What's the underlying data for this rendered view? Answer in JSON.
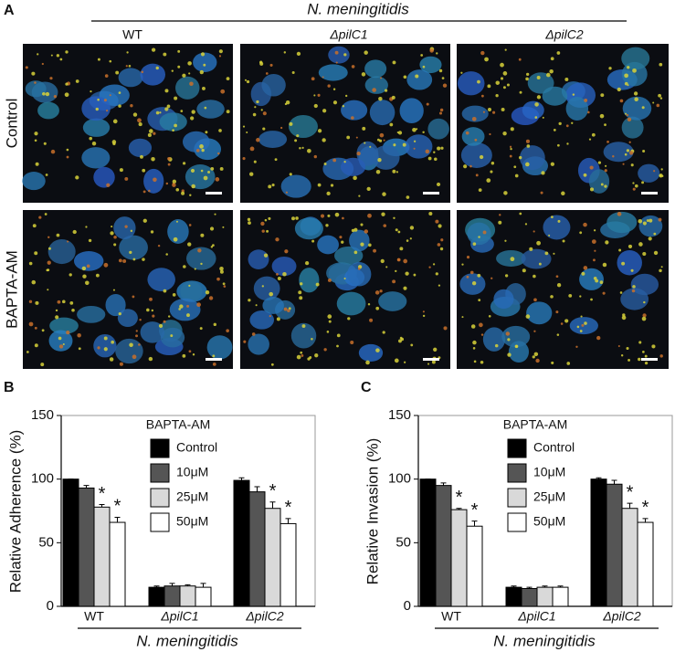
{
  "panel_a": {
    "panel_label": "A",
    "group_label": "N. meningitidis",
    "columns": [
      "WT",
      "ΔpilC1",
      "ΔpilC2"
    ],
    "rows": [
      "Control",
      "BAPTA-AM"
    ]
  },
  "chart_data": [
    {
      "type": "bar",
      "panel_label": "B",
      "y_label": "Relative Adherence (%)",
      "x_label": "N. meningitidis",
      "legend_title": "BAPTA-AM",
      "legend": "upper-center",
      "categories": [
        "WT",
        "ΔpilC1",
        "ΔpilC2"
      ],
      "ylim": [
        0,
        150
      ],
      "yticks": [
        0,
        50,
        100,
        150
      ],
      "series": [
        {
          "name": "Control",
          "color": "#000000",
          "values": [
            100,
            15,
            99
          ],
          "errors": [
            0,
            1,
            2
          ]
        },
        {
          "name": "10μM",
          "color": "#555555",
          "values": [
            93,
            16,
            90
          ],
          "errors": [
            2,
            2,
            4
          ]
        },
        {
          "name": "25μM",
          "color": "#d9d9d9",
          "values": [
            78,
            16,
            77
          ],
          "errors": [
            2,
            1,
            5
          ],
          "annotations": [
            "*",
            null,
            "*"
          ]
        },
        {
          "name": "50μM",
          "color": "#ffffff",
          "values": [
            66,
            15,
            65
          ],
          "errors": [
            4,
            3,
            4
          ],
          "annotations": [
            "*",
            null,
            "*"
          ]
        }
      ]
    },
    {
      "type": "bar",
      "panel_label": "C",
      "y_label": "Relative Invasion (%)",
      "x_label": "N. meningitidis",
      "legend_title": "BAPTA-AM",
      "legend": "upper-center",
      "categories": [
        "WT",
        "ΔpilC1",
        "ΔpilC2"
      ],
      "ylim": [
        0,
        150
      ],
      "yticks": [
        0,
        50,
        100,
        150
      ],
      "series": [
        {
          "name": "Control",
          "color": "#000000",
          "values": [
            100,
            15,
            100
          ],
          "errors": [
            0,
            1,
            1
          ]
        },
        {
          "name": "10μM",
          "color": "#555555",
          "values": [
            95,
            14,
            96
          ],
          "errors": [
            2,
            1,
            3
          ]
        },
        {
          "name": "25μM",
          "color": "#d9d9d9",
          "values": [
            76,
            15,
            77
          ],
          "errors": [
            1,
            1,
            4
          ],
          "annotations": [
            "*",
            null,
            "*"
          ]
        },
        {
          "name": "50μM",
          "color": "#ffffff",
          "values": [
            63,
            15,
            66
          ],
          "errors": [
            4,
            1,
            3
          ],
          "annotations": [
            "*",
            null,
            "*"
          ]
        }
      ]
    }
  ]
}
